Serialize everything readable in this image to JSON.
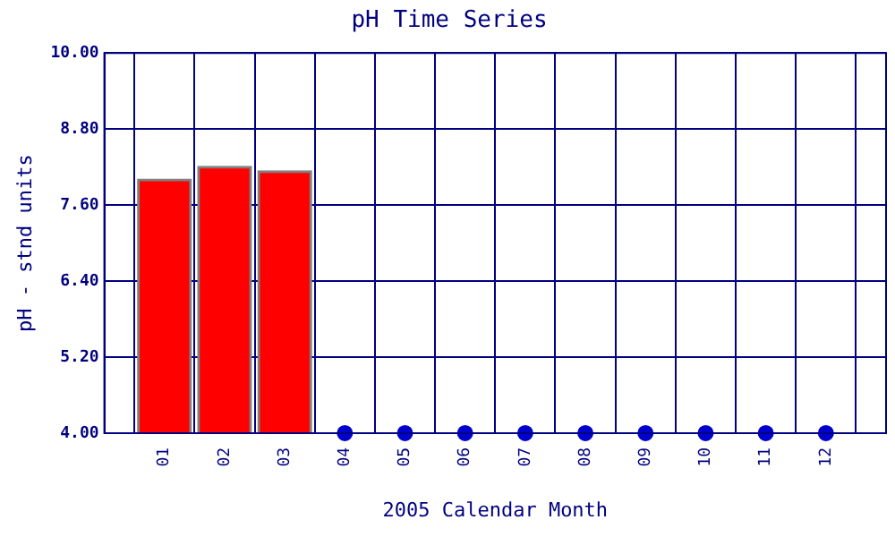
{
  "chart_data": {
    "type": "bar",
    "title": "pH Time Series",
    "xlabel": "2005 Calendar Month",
    "ylabel": "pH - stnd units",
    "categories": [
      "01",
      "02",
      "03",
      "04",
      "05",
      "06",
      "07",
      "08",
      "09",
      "10",
      "11",
      "12"
    ],
    "series": [
      {
        "color": "#ff0000",
        "values": [
          8.01,
          8.21,
          8.14,
          null,
          null,
          null,
          null,
          null,
          null,
          null,
          null,
          null
        ]
      },
      {
        "type": "scatter",
        "color": "#0000cc",
        "marker": "circle",
        "values": [
          null,
          null,
          null,
          4,
          4,
          4,
          4,
          4,
          4,
          4,
          4,
          4
        ]
      }
    ],
    "ylim": [
      4,
      10
    ],
    "yticks": [
      {
        "value": 4,
        "label": "4.00"
      },
      {
        "value": 5.2,
        "label": "5.20"
      },
      {
        "value": 6.4,
        "label": "6.40"
      },
      {
        "value": 7.6,
        "label": "7.60"
      },
      {
        "value": 8.8,
        "label": "8.80"
      },
      {
        "value": 10,
        "label": "10.00"
      }
    ],
    "grid": true,
    "legend": false
  }
}
